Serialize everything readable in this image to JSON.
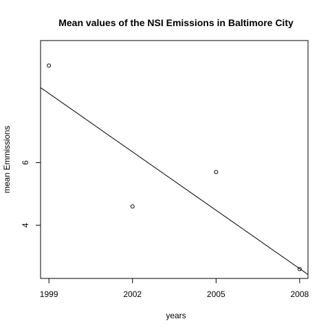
{
  "chart_data": {
    "type": "scatter",
    "title": "Mean values of the NSI Emissions in Baltimore City",
    "xlabel": "years",
    "ylabel": "mean Emmissions",
    "x_ticks": [
      1999,
      2002,
      2005,
      2008
    ],
    "y_ticks": [
      4,
      6
    ],
    "xlim": [
      1998.7,
      2008.3
    ],
    "ylim": [
      2.3,
      9.9
    ],
    "points": [
      {
        "x": 1999,
        "y": 9.1
      },
      {
        "x": 2002,
        "y": 4.6
      },
      {
        "x": 2005,
        "y": 5.7
      },
      {
        "x": 2008,
        "y": 2.6
      }
    ],
    "regression_line": {
      "intercept_at_1999": 8.21,
      "slope_per_year": -0.622
    },
    "grid": false,
    "legend": "none"
  }
}
